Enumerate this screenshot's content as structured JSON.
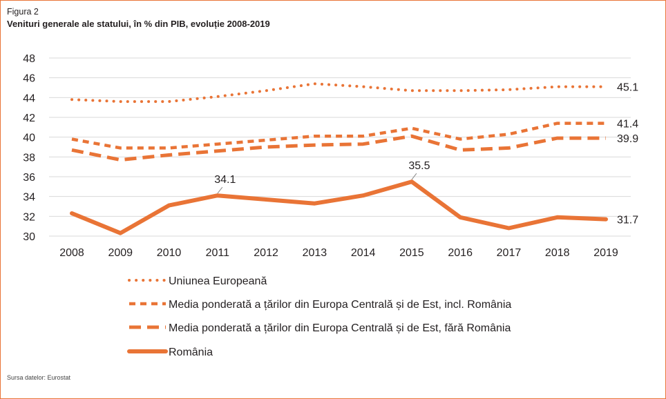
{
  "figure": {
    "label": "Figura 2",
    "title": "Venituri generale ale statului, în % din PIB, evoluție 2008-2019",
    "source": "Sursa datelor: Eurostat"
  },
  "colors": {
    "accent": "#e97436",
    "grid": "#d9d9d9",
    "text": "#231f20"
  },
  "chart_data": {
    "type": "line",
    "title": "Venituri generale ale statului, în % din PIB, evoluție 2008-2019",
    "xlabel": "",
    "ylabel": "",
    "x": [
      "2008",
      "2009",
      "2010",
      "2011",
      "2012",
      "2013",
      "2014",
      "2015",
      "2016",
      "2017",
      "2018",
      "2019"
    ],
    "ylim": [
      30,
      48
    ],
    "yticks": [
      30,
      32,
      34,
      36,
      38,
      40,
      42,
      44,
      46,
      48
    ],
    "grid": true,
    "legend_position": "bottom",
    "series": [
      {
        "name": "Uniunea Europeană",
        "style": "dotted",
        "values": [
          43.8,
          43.6,
          43.6,
          44.1,
          44.7,
          45.4,
          45.1,
          44.7,
          44.7,
          44.8,
          45.1,
          45.1
        ],
        "end_label": "45.1"
      },
      {
        "name": "Media ponderată a țărilor din Europa Centrală și de Est, incl. România",
        "style": "dashed-short",
        "values": [
          39.8,
          38.9,
          38.9,
          39.3,
          39.7,
          40.1,
          40.1,
          40.9,
          39.8,
          40.3,
          41.4,
          41.4
        ],
        "end_label": "41.4"
      },
      {
        "name": "Media ponderată a țărilor din Europa Centrală și de Est, fără România",
        "style": "dashed-long",
        "values": [
          38.7,
          37.7,
          38.2,
          38.6,
          39.0,
          39.2,
          39.3,
          40.1,
          38.7,
          38.9,
          39.9,
          39.9
        ],
        "end_label": "39.9"
      },
      {
        "name": "România",
        "style": "solid",
        "values": [
          32.3,
          30.3,
          33.1,
          34.1,
          33.7,
          33.3,
          34.1,
          35.5,
          31.9,
          30.8,
          31.9,
          31.7
        ],
        "end_label": "31.7"
      }
    ],
    "annotations": [
      {
        "series": "România",
        "x": "2011",
        "text": "34.1"
      },
      {
        "series": "România",
        "x": "2015",
        "text": "35.5"
      }
    ]
  }
}
